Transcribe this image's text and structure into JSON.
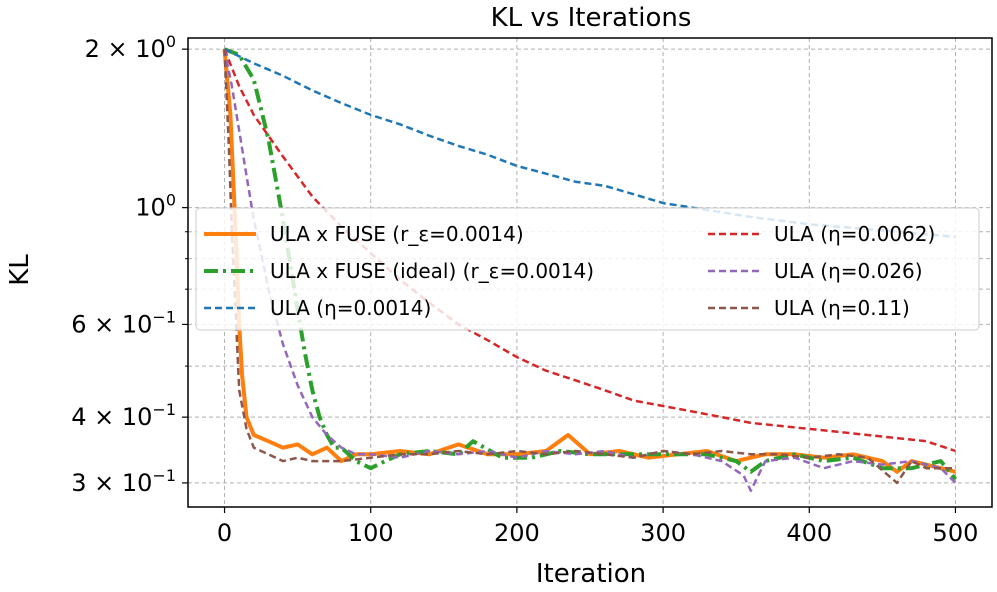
{
  "chart_data": {
    "type": "line",
    "title": "KL vs Iterations",
    "xlabel": "Iteration",
    "ylabel": "KL",
    "xscale": "linear",
    "yscale": "log",
    "xlim": [
      -25,
      525
    ],
    "ylim": [
      0.27,
      2.1
    ],
    "grid": true,
    "legend_location": "center (two columns)",
    "x_ticks": [
      0,
      100,
      200,
      300,
      400,
      500
    ],
    "x_tick_labels": [
      "0",
      "100",
      "200",
      "300",
      "400",
      "500"
    ],
    "y_ticks": [
      0.3,
      0.4,
      0.6,
      1.0,
      2.0
    ],
    "y_tick_labels": [
      {
        "base": "3 × 10",
        "exp": "−1"
      },
      {
        "base": "4 × 10",
        "exp": "−1"
      },
      {
        "base": "6 × 10",
        "exp": "−1"
      },
      {
        "base": "10",
        "exp": "0"
      },
      {
        "base": "2 × 10",
        "exp": "0"
      }
    ],
    "y_minor_ticks": [
      0.5,
      0.7,
      0.8,
      0.9
    ],
    "series": [
      {
        "name": "ULA x FUSE (r_ε=0.0014)",
        "color": "#ff7f0e",
        "style": "solid",
        "width": 4,
        "x": [
          0,
          4,
          8,
          10,
          12,
          15,
          20,
          30,
          40,
          50,
          60,
          70,
          80,
          90,
          100,
          120,
          140,
          160,
          180,
          200,
          220,
          235,
          250,
          270,
          290,
          310,
          330,
          350,
          370,
          390,
          410,
          430,
          450,
          460,
          470,
          490,
          500
        ],
        "values": [
          2.0,
          1.5,
          0.85,
          0.6,
          0.48,
          0.4,
          0.37,
          0.36,
          0.35,
          0.355,
          0.34,
          0.35,
          0.33,
          0.34,
          0.34,
          0.345,
          0.34,
          0.355,
          0.34,
          0.34,
          0.345,
          0.37,
          0.34,
          0.345,
          0.335,
          0.34,
          0.345,
          0.33,
          0.34,
          0.34,
          0.335,
          0.34,
          0.33,
          0.315,
          0.33,
          0.32,
          0.315
        ]
      },
      {
        "name": "ULA x FUSE (ideal) (r_ε=0.0014)",
        "color": "#2ca02c",
        "style": "dashdot",
        "width": 4,
        "x": [
          0,
          10,
          20,
          30,
          40,
          45,
          50,
          55,
          60,
          65,
          70,
          75,
          80,
          90,
          100,
          110,
          120,
          140,
          160,
          170,
          190,
          210,
          230,
          250,
          270,
          290,
          310,
          330,
          350,
          360,
          370,
          390,
          410,
          430,
          450,
          470,
          490,
          500
        ],
        "values": [
          2.0,
          1.95,
          1.75,
          1.35,
          0.95,
          0.78,
          0.64,
          0.53,
          0.45,
          0.4,
          0.37,
          0.35,
          0.35,
          0.33,
          0.32,
          0.33,
          0.34,
          0.345,
          0.34,
          0.36,
          0.335,
          0.335,
          0.345,
          0.34,
          0.34,
          0.34,
          0.34,
          0.34,
          0.33,
          0.315,
          0.33,
          0.34,
          0.33,
          0.335,
          0.32,
          0.32,
          0.33,
          0.305
        ]
      },
      {
        "name": "ULA (η=0.0014)",
        "color": "#1f77b4",
        "style": "dashed",
        "width": 2.5,
        "x": [
          0,
          20,
          40,
          60,
          80,
          100,
          120,
          140,
          160,
          180,
          200,
          220,
          240,
          260,
          280,
          300,
          320,
          340,
          360,
          380,
          400,
          420,
          440,
          460,
          480,
          500
        ],
        "values": [
          2.0,
          1.88,
          1.78,
          1.67,
          1.58,
          1.5,
          1.44,
          1.37,
          1.31,
          1.26,
          1.2,
          1.16,
          1.12,
          1.1,
          1.06,
          1.02,
          1.0,
          0.98,
          0.96,
          0.945,
          0.93,
          0.92,
          0.91,
          0.9,
          0.89,
          0.88
        ]
      },
      {
        "name": "ULA (η=0.0062)",
        "color": "#d62728",
        "style": "dashed",
        "width": 2.5,
        "x": [
          0,
          10,
          20,
          40,
          60,
          80,
          100,
          120,
          140,
          160,
          180,
          200,
          220,
          240,
          260,
          280,
          300,
          320,
          340,
          360,
          380,
          400,
          420,
          440,
          460,
          480,
          500
        ],
        "values": [
          2.0,
          1.7,
          1.5,
          1.25,
          1.05,
          0.92,
          0.82,
          0.73,
          0.66,
          0.6,
          0.56,
          0.52,
          0.49,
          0.47,
          0.45,
          0.43,
          0.42,
          0.41,
          0.4,
          0.39,
          0.385,
          0.38,
          0.375,
          0.37,
          0.365,
          0.36,
          0.345
        ]
      },
      {
        "name": "ULA (η=0.026)",
        "color": "#9467bd",
        "style": "dashed",
        "width": 2.5,
        "x": [
          0,
          5,
          10,
          15,
          20,
          25,
          30,
          40,
          50,
          60,
          70,
          80,
          90,
          100,
          120,
          140,
          160,
          180,
          200,
          220,
          240,
          260,
          280,
          300,
          320,
          340,
          355,
          360,
          370,
          390,
          410,
          430,
          450,
          470,
          490,
          500
        ],
        "values": [
          2.0,
          1.7,
          1.4,
          1.15,
          0.95,
          0.82,
          0.7,
          0.55,
          0.46,
          0.4,
          0.37,
          0.35,
          0.34,
          0.34,
          0.335,
          0.345,
          0.34,
          0.345,
          0.335,
          0.345,
          0.34,
          0.345,
          0.335,
          0.345,
          0.34,
          0.33,
          0.31,
          0.29,
          0.33,
          0.335,
          0.32,
          0.33,
          0.325,
          0.33,
          0.32,
          0.3
        ]
      },
      {
        "name": "ULA (η=0.11)",
        "color": "#8c564b",
        "style": "dashed",
        "width": 2.5,
        "x": [
          0,
          3,
          5,
          8,
          10,
          15,
          20,
          30,
          40,
          50,
          60,
          80,
          100,
          120,
          140,
          160,
          180,
          200,
          220,
          240,
          260,
          280,
          300,
          320,
          340,
          360,
          380,
          400,
          420,
          440,
          460,
          470,
          480,
          500
        ],
        "values": [
          2.0,
          1.3,
          0.9,
          0.6,
          0.45,
          0.38,
          0.35,
          0.34,
          0.33,
          0.335,
          0.33,
          0.33,
          0.335,
          0.34,
          0.34,
          0.345,
          0.34,
          0.345,
          0.34,
          0.345,
          0.34,
          0.335,
          0.345,
          0.34,
          0.345,
          0.34,
          0.34,
          0.335,
          0.34,
          0.335,
          0.3,
          0.33,
          0.32,
          0.32
        ]
      }
    ]
  }
}
